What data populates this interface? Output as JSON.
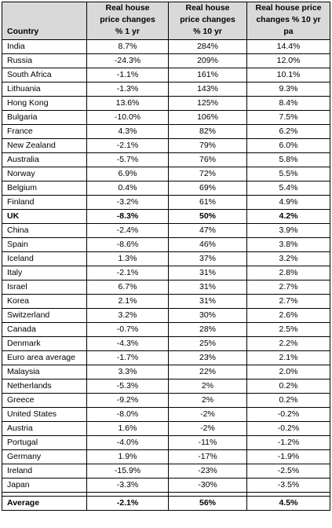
{
  "table": {
    "headers": [
      "Country",
      "Real house price changes % 1 yr",
      "Real house price changes % 10 yr",
      "Real house price changes % 10 yr pa"
    ],
    "header_lines": [
      [
        "Country"
      ],
      [
        "Real house",
        "price changes",
        "% 1 yr"
      ],
      [
        "Real house",
        "price changes",
        "% 10 yr"
      ],
      [
        "Real house price",
        "changes % 10 yr",
        "pa"
      ]
    ],
    "rows": [
      {
        "country": "India",
        "yr1": "8.7%",
        "yr10": "284%",
        "pa": "14.4%",
        "bold": false
      },
      {
        "country": "Russia",
        "yr1": "-24.3%",
        "yr10": "209%",
        "pa": "12.0%",
        "bold": false
      },
      {
        "country": "South Africa",
        "yr1": "-1.1%",
        "yr10": "161%",
        "pa": "10.1%",
        "bold": false
      },
      {
        "country": "Lithuania",
        "yr1": "-1.3%",
        "yr10": "143%",
        "pa": "9.3%",
        "bold": false
      },
      {
        "country": "Hong Kong",
        "yr1": "13.6%",
        "yr10": "125%",
        "pa": "8.4%",
        "bold": false
      },
      {
        "country": "Bulgaria",
        "yr1": "-10.0%",
        "yr10": "106%",
        "pa": "7.5%",
        "bold": false
      },
      {
        "country": "France",
        "yr1": "4.3%",
        "yr10": "82%",
        "pa": "6.2%",
        "bold": false
      },
      {
        "country": "New Zealand",
        "yr1": "-2.1%",
        "yr10": "79%",
        "pa": "6.0%",
        "bold": false
      },
      {
        "country": "Australia",
        "yr1": "-5.7%",
        "yr10": "76%",
        "pa": "5.8%",
        "bold": false
      },
      {
        "country": "Norway",
        "yr1": "6.9%",
        "yr10": "72%",
        "pa": "5.5%",
        "bold": false
      },
      {
        "country": "Belgium",
        "yr1": "0.4%",
        "yr10": "69%",
        "pa": "5.4%",
        "bold": false
      },
      {
        "country": "Finland",
        "yr1": "-3.2%",
        "yr10": "61%",
        "pa": "4.9%",
        "bold": false
      },
      {
        "country": "UK",
        "yr1": "-8.3%",
        "yr10": "50%",
        "pa": "4.2%",
        "bold": true
      },
      {
        "country": "China",
        "yr1": "-2.4%",
        "yr10": "47%",
        "pa": "3.9%",
        "bold": false
      },
      {
        "country": "Spain",
        "yr1": "-8.6%",
        "yr10": "46%",
        "pa": "3.8%",
        "bold": false
      },
      {
        "country": "Iceland",
        "yr1": "1.3%",
        "yr10": "37%",
        "pa": "3.2%",
        "bold": false
      },
      {
        "country": "Italy",
        "yr1": "-2.1%",
        "yr10": "31%",
        "pa": "2.8%",
        "bold": false
      },
      {
        "country": "Israel",
        "yr1": "6.7%",
        "yr10": "31%",
        "pa": "2.7%",
        "bold": false
      },
      {
        "country": "Korea",
        "yr1": "2.1%",
        "yr10": "31%",
        "pa": "2.7%",
        "bold": false
      },
      {
        "country": "Switzerland",
        "yr1": "3.2%",
        "yr10": "30%",
        "pa": "2.6%",
        "bold": false
      },
      {
        "country": "Canada",
        "yr1": "-0.7%",
        "yr10": "28%",
        "pa": "2.5%",
        "bold": false
      },
      {
        "country": "Denmark",
        "yr1": "-4.3%",
        "yr10": "25%",
        "pa": "2.2%",
        "bold": false
      },
      {
        "country": "Euro area average",
        "yr1": "-1.7%",
        "yr10": "23%",
        "pa": "2.1%",
        "bold": false
      },
      {
        "country": "Malaysia",
        "yr1": "3.3%",
        "yr10": "22%",
        "pa": "2.0%",
        "bold": false
      },
      {
        "country": "Netherlands",
        "yr1": "-5.3%",
        "yr10": "2%",
        "pa": "0.2%",
        "bold": false
      },
      {
        "country": "Greece",
        "yr1": "-9.2%",
        "yr10": "2%",
        "pa": "0.2%",
        "bold": false
      },
      {
        "country": "United States",
        "yr1": "-8.0%",
        "yr10": "-2%",
        "pa": "-0.2%",
        "bold": false
      },
      {
        "country": "Austria",
        "yr1": "1.6%",
        "yr10": "-2%",
        "pa": "-0.2%",
        "bold": false
      },
      {
        "country": "Portugal",
        "yr1": "-4.0%",
        "yr10": "-11%",
        "pa": "-1.2%",
        "bold": false
      },
      {
        "country": "Germany",
        "yr1": "1.9%",
        "yr10": "-17%",
        "pa": "-1.9%",
        "bold": false
      },
      {
        "country": "Ireland",
        "yr1": "-15.9%",
        "yr10": "-23%",
        "pa": "-2.5%",
        "bold": false
      },
      {
        "country": "Japan",
        "yr1": "-3.3%",
        "yr10": "-30%",
        "pa": "-3.5%",
        "bold": false
      }
    ],
    "average": {
      "country": "Average",
      "yr1": "-2.1%",
      "yr10": "56%",
      "pa": "4.5%"
    }
  }
}
